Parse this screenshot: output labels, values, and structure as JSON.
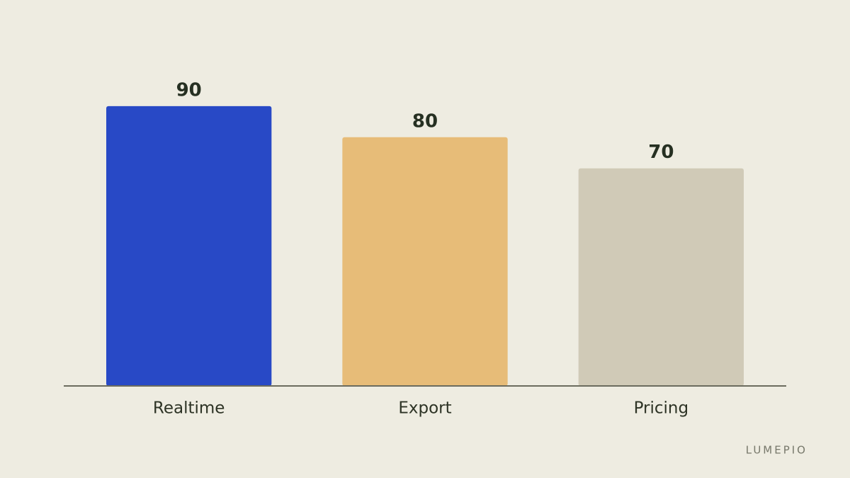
{
  "chart_data": {
    "type": "bar",
    "categories": [
      "Realtime",
      "Export",
      "Pricing"
    ],
    "values": [
      90,
      80,
      70
    ],
    "colors": [
      "#2849c6",
      "#e7bc78",
      "#d0cab7"
    ],
    "ylim": [
      0,
      100
    ]
  },
  "brand": "LUMEPIO"
}
